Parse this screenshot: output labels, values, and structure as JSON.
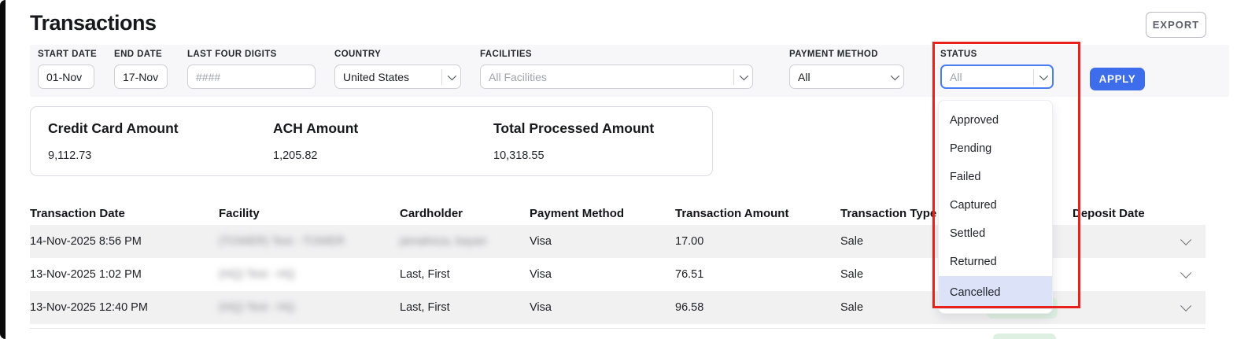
{
  "page": {
    "title": "Transactions"
  },
  "header": {
    "export_label": "EXPORT"
  },
  "colors": {
    "accent_blue": "#3D6DEB",
    "status_focus_border": "#4A7CF2",
    "annotation_red": "#E8211D",
    "badge_green_bg": "#DEF0E2",
    "badge_green_text": "#2F9E4F",
    "row_stripe": "#F1F1F2",
    "filter_bar_bg": "#F7F7F9"
  },
  "filters": {
    "start_date": {
      "label": "START DATE",
      "value": "01-Nov"
    },
    "end_date": {
      "label": "END DATE",
      "value": "17-Nov"
    },
    "last_four_digits": {
      "label": "LAST FOUR DIGITS",
      "placeholder": "####"
    },
    "country": {
      "label": "COUNTRY",
      "value": "United States"
    },
    "facilities": {
      "label": "FACILITIES",
      "placeholder": "All Facilities"
    },
    "payment_method": {
      "label": "PAYMENT METHOD",
      "value": "All"
    },
    "status": {
      "label": "STATUS",
      "placeholder": "All",
      "options": [
        "Approved",
        "Pending",
        "Failed",
        "Captured",
        "Settled",
        "Returned",
        "Cancelled"
      ],
      "highlighted_option": "Cancelled"
    },
    "apply_label": "APPLY"
  },
  "summary_cards": [
    {
      "label": "Credit Card Amount",
      "value": "9,112.73"
    },
    {
      "label": "ACH Amount",
      "value": "1,205.82"
    },
    {
      "label": "Total Processed Amount",
      "value": "10,318.55"
    }
  ],
  "table": {
    "columns": [
      "Transaction Date",
      "Facility",
      "Cardholder",
      "Payment Method",
      "Transaction Amount",
      "Transaction Type",
      "",
      "Deposit Date"
    ],
    "rows": [
      {
        "transaction_date": "14-Nov-2025 8:56 PM",
        "facility": "(TOWER) Test - TOWER",
        "facility_blurred": true,
        "cardholder": "jamalreza, bayan",
        "cardholder_blurred": true,
        "payment_method": "Visa",
        "transaction_amount": "17.00",
        "transaction_type": "Sale",
        "status_badge": "",
        "deposit_date": ""
      },
      {
        "transaction_date": "13-Nov-2025 1:02 PM",
        "facility": "(HQ) Test - HQ",
        "facility_blurred": true,
        "cardholder": "Last, First",
        "cardholder_blurred": false,
        "payment_method": "Visa",
        "transaction_amount": "76.51",
        "transaction_type": "Sale",
        "status_badge": "",
        "deposit_date": ""
      },
      {
        "transaction_date": "13-Nov-2025 12:40 PM",
        "facility": "(HQ) Test - HQ",
        "facility_blurred": true,
        "cardholder": "Last, First",
        "cardholder_blurred": false,
        "payment_method": "Visa",
        "transaction_amount": "96.58",
        "transaction_type": "Sale",
        "status_badge": "SETTLED",
        "deposit_date": ""
      }
    ]
  }
}
